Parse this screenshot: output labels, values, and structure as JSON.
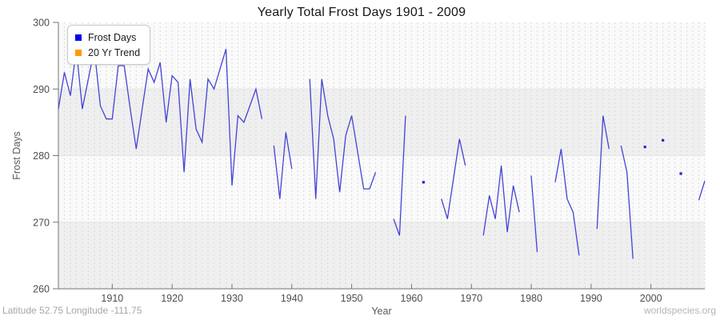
{
  "page": {
    "footer_left": "Latitude 52.75 Longitude -111.75",
    "footer_right": "worldspecies.org"
  },
  "chart_data": {
    "type": "line",
    "title": "Yearly Total Frost Days 1901 - 2009",
    "xlabel": "Year",
    "ylabel": "Frost Days",
    "xlim": [
      1901,
      2009
    ],
    "ylim": [
      260,
      300
    ],
    "xticks": [
      1910,
      1920,
      1930,
      1940,
      1950,
      1960,
      1970,
      1980,
      1990,
      2000
    ],
    "yticks": [
      260,
      270,
      280,
      290,
      300
    ],
    "grid": "vertical dashed gridline per year; horizontal lines at 270/280/290; alternating gray bands",
    "legend_position": "top-left",
    "band_colors": [
      "#efefef",
      "#fafafa"
    ],
    "colors": {
      "line": "#4343d8",
      "isolated_point": "#2626c9",
      "legend_frost_days": "#0000ee",
      "legend_trend": "#ff9900",
      "axis": "#737373",
      "tick_label": "#4d4d4d",
      "axis_label": "#595959",
      "gridline": "#d9d9d9",
      "hgridline": "#e3e3e3"
    },
    "legend": [
      {
        "label": "Frost Days",
        "color": "#0000ee"
      },
      {
        "label": "20 Yr Trend",
        "color": "#ff9900"
      }
    ],
    "series": [
      {
        "name": "Frost Days",
        "color": "#4343d8",
        "start_year": 1901,
        "values": [
          287,
          292.5,
          289,
          296,
          287,
          291.5,
          296,
          287.5,
          285.5,
          285.5,
          293.5,
          293.5,
          287,
          281,
          287,
          293,
          291,
          294,
          285,
          292,
          291,
          277.5,
          291.5,
          284,
          282,
          291.5,
          290,
          293,
          296,
          275.5,
          286,
          285,
          287.5,
          290,
          285.5,
          null,
          281.5,
          273.5,
          283.5,
          278,
          null,
          null,
          291.5,
          273.5,
          291.5,
          286,
          282.5,
          274.5,
          283,
          286,
          280.5,
          275,
          275,
          277.5,
          null,
          null,
          270.5,
          268,
          286,
          null,
          null,
          276,
          null,
          null,
          273.5,
          270.5,
          276.5,
          282.5,
          278.5,
          null,
          null,
          268,
          274,
          270.5,
          278.5,
          268.5,
          275.5,
          271.5,
          null,
          277,
          265.5,
          null,
          null,
          276,
          281,
          273.5,
          271.5,
          265,
          null,
          null,
          269,
          286,
          281,
          null,
          281.5,
          277.5,
          264.5,
          null,
          281.3,
          null,
          null,
          282.3,
          null,
          null,
          277.3,
          null,
          null,
          273.3,
          276.2
        ]
      },
      {
        "name": "20 Yr Trend",
        "color": "#ff9900",
        "start_year": 1901,
        "values": []
      }
    ]
  }
}
